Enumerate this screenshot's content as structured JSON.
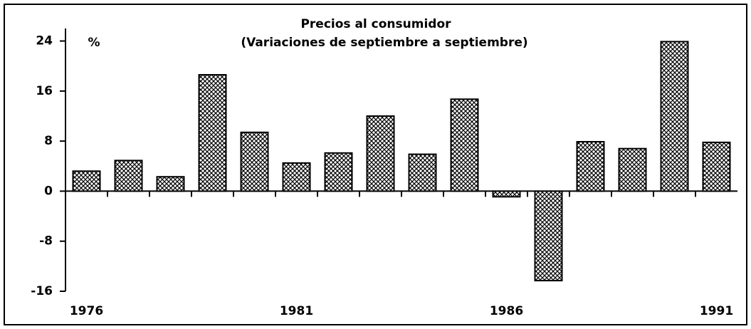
{
  "chart_data": {
    "type": "bar",
    "title": "Precios al consumidor",
    "subtitle": "(Variaciones de septiembre a septiembre)",
    "y_unit_label": "%",
    "categories": [
      "1976",
      null,
      null,
      null,
      null,
      "1981",
      null,
      null,
      null,
      null,
      "1986",
      null,
      null,
      null,
      null,
      "1991"
    ],
    "values": [
      3.2,
      4.9,
      2.3,
      18.6,
      9.4,
      4.5,
      6.1,
      12,
      5.9,
      14.7,
      -0.9,
      -14.3,
      7.9,
      6.8,
      23.9,
      7.8
    ],
    "color": "#000000",
    "ylim": [
      -16,
      26
    ],
    "yticks": [
      -16,
      -8,
      0,
      8,
      16,
      24
    ],
    "grid": false
  }
}
